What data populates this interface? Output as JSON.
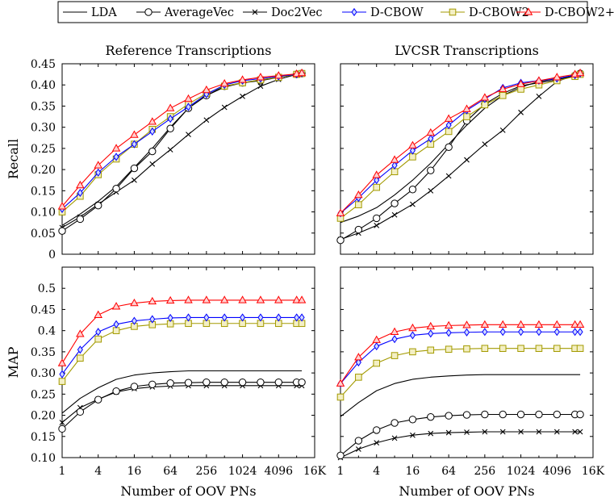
{
  "legend": [
    {
      "name": "LDA",
      "color": "#000000",
      "marker": "none"
    },
    {
      "name": "AverageVec",
      "color": "#000000",
      "marker": "circle"
    },
    {
      "name": "Doc2Vec",
      "color": "#000000",
      "marker": "x"
    },
    {
      "name": "D-CBOW",
      "color": "#0000ff",
      "marker": "diamond"
    },
    {
      "name": "D-CBOW2",
      "color": "#a39a00",
      "marker": "square"
    },
    {
      "name": "D-CBOW2+",
      "color": "#ff0000",
      "marker": "triangle"
    }
  ],
  "chart_data": [
    {
      "type": "line",
      "title": "Reference Transcriptions",
      "ylabel": "Recall",
      "xlabel": "",
      "x_scale": "log2",
      "x_ticks": [
        "1",
        "4",
        "16",
        "64",
        "256",
        "1024",
        "4096",
        "16K"
      ],
      "x_tick_values": [
        1,
        4,
        16,
        64,
        256,
        1024,
        4096,
        16384
      ],
      "xlim": [
        1,
        16384
      ],
      "ylim": [
        0,
        0.45
      ],
      "y_ticks": [
        "0",
        "0.05",
        "0.10",
        "0.15",
        "0.20",
        "0.25",
        "0.30",
        "0.35",
        "0.40",
        "0.45"
      ],
      "y_tick_values": [
        0,
        0.05,
        0.1,
        0.15,
        0.2,
        0.25,
        0.3,
        0.35,
        0.4,
        0.45
      ],
      "x": [
        1,
        2,
        4,
        8,
        16,
        32,
        64,
        128,
        256,
        512,
        1024,
        2048,
        4096,
        8192,
        10000
      ],
      "series": [
        {
          "name": "LDA",
          "values": [
            0.068,
            0.095,
            0.125,
            0.16,
            0.205,
            0.25,
            0.3,
            0.345,
            0.375,
            0.395,
            0.405,
            0.412,
            0.418,
            0.425,
            0.427
          ]
        },
        {
          "name": "AverageVec",
          "values": [
            0.055,
            0.083,
            0.115,
            0.155,
            0.203,
            0.243,
            0.297,
            0.345,
            0.375,
            0.397,
            0.405,
            0.41,
            0.418,
            0.425,
            0.427
          ]
        },
        {
          "name": "Doc2Vec",
          "values": [
            0.063,
            0.088,
            0.118,
            0.147,
            0.175,
            0.213,
            0.247,
            0.283,
            0.317,
            0.347,
            0.373,
            0.397,
            0.413,
            0.425,
            0.427
          ]
        },
        {
          "name": "D-CBOW",
          "values": [
            0.107,
            0.145,
            0.193,
            0.23,
            0.26,
            0.29,
            0.32,
            0.348,
            0.378,
            0.4,
            0.41,
            0.415,
            0.42,
            0.425,
            0.428
          ]
        },
        {
          "name": "D-CBOW2",
          "values": [
            0.1,
            0.137,
            0.188,
            0.225,
            0.26,
            0.295,
            0.325,
            0.355,
            0.38,
            0.397,
            0.405,
            0.412,
            0.418,
            0.425,
            0.427
          ]
        },
        {
          "name": "D-CBOW2+",
          "values": [
            0.113,
            0.163,
            0.21,
            0.25,
            0.282,
            0.313,
            0.345,
            0.367,
            0.388,
            0.403,
            0.412,
            0.418,
            0.422,
            0.426,
            0.428
          ]
        }
      ]
    },
    {
      "type": "line",
      "title": "LVCSR Transcriptions",
      "ylabel": "",
      "xlabel": "",
      "x_scale": "log2",
      "x_ticks": [
        "1",
        "4",
        "16",
        "64",
        "256",
        "1024",
        "4096",
        "16K"
      ],
      "x_tick_values": [
        1,
        4,
        16,
        64,
        256,
        1024,
        4096,
        16384
      ],
      "xlim": [
        1,
        16384
      ],
      "ylim": [
        0,
        0.45
      ],
      "y_ticks": [],
      "y_tick_values": [
        0,
        0.05,
        0.1,
        0.15,
        0.2,
        0.25,
        0.3,
        0.35,
        0.4,
        0.45
      ],
      "x": [
        1,
        2,
        4,
        8,
        16,
        32,
        64,
        128,
        256,
        512,
        1024,
        2048,
        4096,
        8192,
        10000
      ],
      "series": [
        {
          "name": "LDA",
          "values": [
            0.075,
            0.09,
            0.11,
            0.14,
            0.175,
            0.215,
            0.26,
            0.305,
            0.345,
            0.375,
            0.395,
            0.408,
            0.415,
            0.423,
            0.427
          ]
        },
        {
          "name": "AverageVec",
          "values": [
            0.033,
            0.058,
            0.085,
            0.12,
            0.153,
            0.198,
            0.253,
            0.315,
            0.355,
            0.38,
            0.398,
            0.405,
            0.412,
            0.422,
            0.427
          ]
        },
        {
          "name": "Doc2Vec",
          "values": [
            0.035,
            0.05,
            0.068,
            0.093,
            0.118,
            0.15,
            0.185,
            0.223,
            0.26,
            0.293,
            0.335,
            0.373,
            0.408,
            0.423,
            0.427
          ]
        },
        {
          "name": "D-CBOW",
          "values": [
            0.097,
            0.133,
            0.175,
            0.21,
            0.245,
            0.273,
            0.305,
            0.34,
            0.367,
            0.393,
            0.405,
            0.41,
            0.415,
            0.423,
            0.427
          ]
        },
        {
          "name": "D-CBOW2",
          "values": [
            0.085,
            0.117,
            0.158,
            0.195,
            0.23,
            0.26,
            0.29,
            0.325,
            0.353,
            0.375,
            0.39,
            0.4,
            0.41,
            0.42,
            0.425
          ]
        },
        {
          "name": "D-CBOW2+",
          "values": [
            0.097,
            0.14,
            0.187,
            0.223,
            0.257,
            0.287,
            0.32,
            0.343,
            0.37,
            0.39,
            0.402,
            0.41,
            0.418,
            0.425,
            0.428
          ]
        }
      ]
    },
    {
      "type": "line",
      "title": "",
      "ylabel": "MAP",
      "xlabel": "Number of OOV PNs",
      "x_scale": "log2",
      "x_ticks": [
        "1",
        "4",
        "16",
        "64",
        "256",
        "1024",
        "4096",
        "16K"
      ],
      "x_tick_values": [
        1,
        4,
        16,
        64,
        256,
        1024,
        4096,
        16384
      ],
      "xlim": [
        1,
        16384
      ],
      "ylim": [
        0.1,
        0.55
      ],
      "y_ticks": [
        "0.10",
        "0.15",
        "0.20",
        "0.25",
        "0.30",
        "0.35",
        "0.4",
        "0.45",
        "0.5"
      ],
      "y_tick_values": [
        0.1,
        0.15,
        0.2,
        0.25,
        0.3,
        0.35,
        0.4,
        0.45,
        0.5
      ],
      "x": [
        1,
        2,
        4,
        8,
        16,
        32,
        64,
        128,
        256,
        512,
        1024,
        2048,
        4096,
        8192,
        10000
      ],
      "series": [
        {
          "name": "LDA",
          "values": [
            0.205,
            0.24,
            0.265,
            0.285,
            0.295,
            0.3,
            0.303,
            0.305,
            0.305,
            0.305,
            0.305,
            0.305,
            0.305,
            0.305,
            0.305
          ]
        },
        {
          "name": "AverageVec",
          "values": [
            0.168,
            0.208,
            0.237,
            0.257,
            0.268,
            0.273,
            0.276,
            0.277,
            0.278,
            0.278,
            0.278,
            0.278,
            0.278,
            0.278,
            0.278
          ]
        },
        {
          "name": "Doc2Vec",
          "values": [
            0.183,
            0.218,
            0.238,
            0.255,
            0.263,
            0.267,
            0.269,
            0.27,
            0.27,
            0.27,
            0.27,
            0.27,
            0.27,
            0.27,
            0.27
          ]
        },
        {
          "name": "D-CBOW",
          "values": [
            0.297,
            0.355,
            0.397,
            0.415,
            0.423,
            0.427,
            0.43,
            0.431,
            0.431,
            0.431,
            0.431,
            0.431,
            0.431,
            0.431,
            0.431
          ]
        },
        {
          "name": "D-CBOW2",
          "values": [
            0.28,
            0.335,
            0.38,
            0.4,
            0.41,
            0.414,
            0.416,
            0.417,
            0.417,
            0.417,
            0.417,
            0.417,
            0.417,
            0.417,
            0.417
          ]
        },
        {
          "name": "D-CBOW2+",
          "values": [
            0.323,
            0.392,
            0.437,
            0.457,
            0.465,
            0.469,
            0.471,
            0.472,
            0.472,
            0.472,
            0.472,
            0.472,
            0.472,
            0.472,
            0.472
          ]
        }
      ]
    },
    {
      "type": "line",
      "title": "",
      "ylabel": "",
      "xlabel": "Number of OOV PNs",
      "x_scale": "log2",
      "x_ticks": [
        "1",
        "4",
        "16",
        "64",
        "256",
        "1024",
        "4096",
        "16K"
      ],
      "x_tick_values": [
        1,
        4,
        16,
        64,
        256,
        1024,
        4096,
        16384
      ],
      "xlim": [
        1,
        16384
      ],
      "ylim": [
        0.1,
        0.55
      ],
      "y_ticks": [],
      "y_tick_values": [
        0.1,
        0.15,
        0.2,
        0.25,
        0.3,
        0.35,
        0.4,
        0.45,
        0.5
      ],
      "x": [
        1,
        2,
        4,
        8,
        16,
        32,
        64,
        128,
        256,
        512,
        1024,
        2048,
        4096,
        8192,
        10000
      ],
      "series": [
        {
          "name": "LDA",
          "values": [
            0.197,
            0.23,
            0.258,
            0.275,
            0.285,
            0.29,
            0.293,
            0.295,
            0.296,
            0.296,
            0.296,
            0.296,
            0.296,
            0.296,
            0.296
          ]
        },
        {
          "name": "AverageVec",
          "values": [
            0.105,
            0.14,
            0.165,
            0.182,
            0.19,
            0.196,
            0.199,
            0.201,
            0.202,
            0.202,
            0.202,
            0.202,
            0.202,
            0.202,
            0.202
          ]
        },
        {
          "name": "Doc2Vec",
          "values": [
            0.1,
            0.12,
            0.135,
            0.146,
            0.153,
            0.157,
            0.159,
            0.16,
            0.161,
            0.161,
            0.161,
            0.161,
            0.161,
            0.161,
            0.161
          ]
        },
        {
          "name": "D-CBOW",
          "values": [
            0.275,
            0.325,
            0.363,
            0.38,
            0.389,
            0.393,
            0.395,
            0.396,
            0.397,
            0.397,
            0.397,
            0.397,
            0.397,
            0.397,
            0.397
          ]
        },
        {
          "name": "D-CBOW2",
          "values": [
            0.243,
            0.29,
            0.323,
            0.341,
            0.35,
            0.354,
            0.356,
            0.357,
            0.358,
            0.358,
            0.358,
            0.358,
            0.358,
            0.358,
            0.358
          ]
        },
        {
          "name": "D-CBOW2+",
          "values": [
            0.275,
            0.337,
            0.378,
            0.397,
            0.406,
            0.41,
            0.412,
            0.413,
            0.414,
            0.414,
            0.414,
            0.414,
            0.414,
            0.414,
            0.414
          ]
        }
      ]
    }
  ]
}
